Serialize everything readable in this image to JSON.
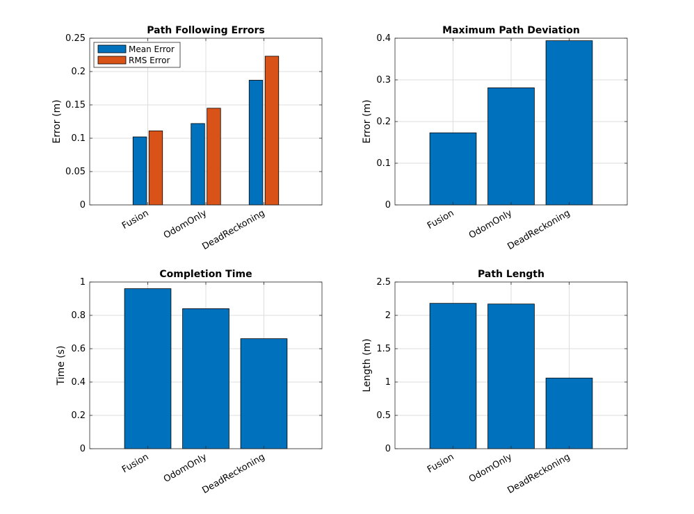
{
  "chart_data": [
    {
      "type": "bar",
      "title": "Path Following Errors",
      "xlabel": "",
      "ylabel": "Error (m)",
      "categories": [
        "Fusion",
        "OdomOnly",
        "DeadReckoning"
      ],
      "series": [
        {
          "name": "Mean Error",
          "values": [
            0.102,
            0.122,
            0.187
          ],
          "color": "#0072BD"
        },
        {
          "name": "RMS Error",
          "values": [
            0.111,
            0.145,
            0.223
          ],
          "color": "#D95319"
        }
      ],
      "ylim": [
        0,
        0.25
      ],
      "yticks": [
        0,
        0.05,
        0.1,
        0.15,
        0.2,
        0.25
      ],
      "ytick_labels": [
        "0",
        "0.05",
        "0.1",
        "0.15",
        "0.2",
        "0.25"
      ],
      "grid": true,
      "legend_position": "top-left"
    },
    {
      "type": "bar",
      "title": "Maximum Path Deviation",
      "xlabel": "",
      "ylabel": "Error (m)",
      "categories": [
        "Fusion",
        "OdomOnly",
        "DeadReckoning"
      ],
      "series": [
        {
          "values": [
            0.173,
            0.281,
            0.394
          ],
          "color": "#0072BD"
        }
      ],
      "ylim": [
        0,
        0.4
      ],
      "yticks": [
        0,
        0.1,
        0.2,
        0.3,
        0.4
      ],
      "ytick_labels": [
        "0",
        "0.1",
        "0.2",
        "0.3",
        "0.4"
      ],
      "grid": true
    },
    {
      "type": "bar",
      "title": "Completion Time",
      "xlabel": "",
      "ylabel": "Time (s)",
      "categories": [
        "Fusion",
        "OdomOnly",
        "DeadReckoning"
      ],
      "series": [
        {
          "values": [
            0.96,
            0.84,
            0.66
          ],
          "color": "#0072BD"
        }
      ],
      "ylim": [
        0,
        1
      ],
      "yticks": [
        0,
        0.2,
        0.4,
        0.6,
        0.8,
        1
      ],
      "ytick_labels": [
        "0",
        "0.2",
        "0.4",
        "0.6",
        "0.8",
        "1"
      ],
      "grid": true
    },
    {
      "type": "bar",
      "title": "Path Length",
      "xlabel": "",
      "ylabel": "Length (m)",
      "categories": [
        "Fusion",
        "OdomOnly",
        "DeadReckoning"
      ],
      "series": [
        {
          "values": [
            2.18,
            2.17,
            1.06
          ],
          "color": "#0072BD"
        }
      ],
      "ylim": [
        0,
        2.5
      ],
      "yticks": [
        0,
        0.5,
        1,
        1.5,
        2,
        2.5
      ],
      "ytick_labels": [
        "0",
        "0.5",
        "1",
        "1.5",
        "2",
        "2.5"
      ],
      "grid": true
    }
  ]
}
